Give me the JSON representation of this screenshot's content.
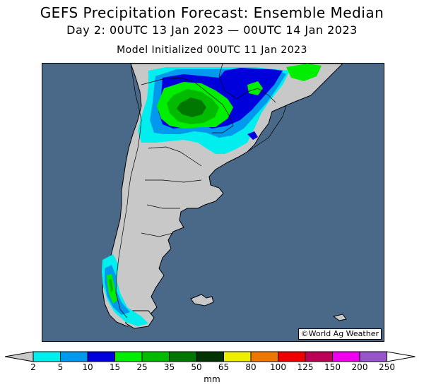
{
  "title": "GEFS Precipitation Forecast: Ensemble Median",
  "subtitle": "Day 2: 00UTC 13 Jan 2023 — 00UTC 14 Jan 2023",
  "init": "Model Initialized 00UTC 11 Jan 2023",
  "credit": "©World Ag Weather",
  "legend": {
    "units": "mm",
    "ticks": [
      "2",
      "5",
      "10",
      "15",
      "25",
      "35",
      "50",
      "65",
      "80",
      "100",
      "125",
      "150",
      "200",
      "250"
    ],
    "colors": [
      "#00eeee",
      "#0099ee",
      "#0000dd",
      "#00ee00",
      "#00bb00",
      "#007700",
      "#003300",
      "#eeee00",
      "#ee7700",
      "#ee0000",
      "#bb0055",
      "#ee00ee",
      "#9955cc"
    ],
    "below_color": "#c8c8c8",
    "above_color": "#ffffff"
  },
  "colors": {
    "ocean": "#4a6888",
    "land": "#c8c8c8"
  }
}
